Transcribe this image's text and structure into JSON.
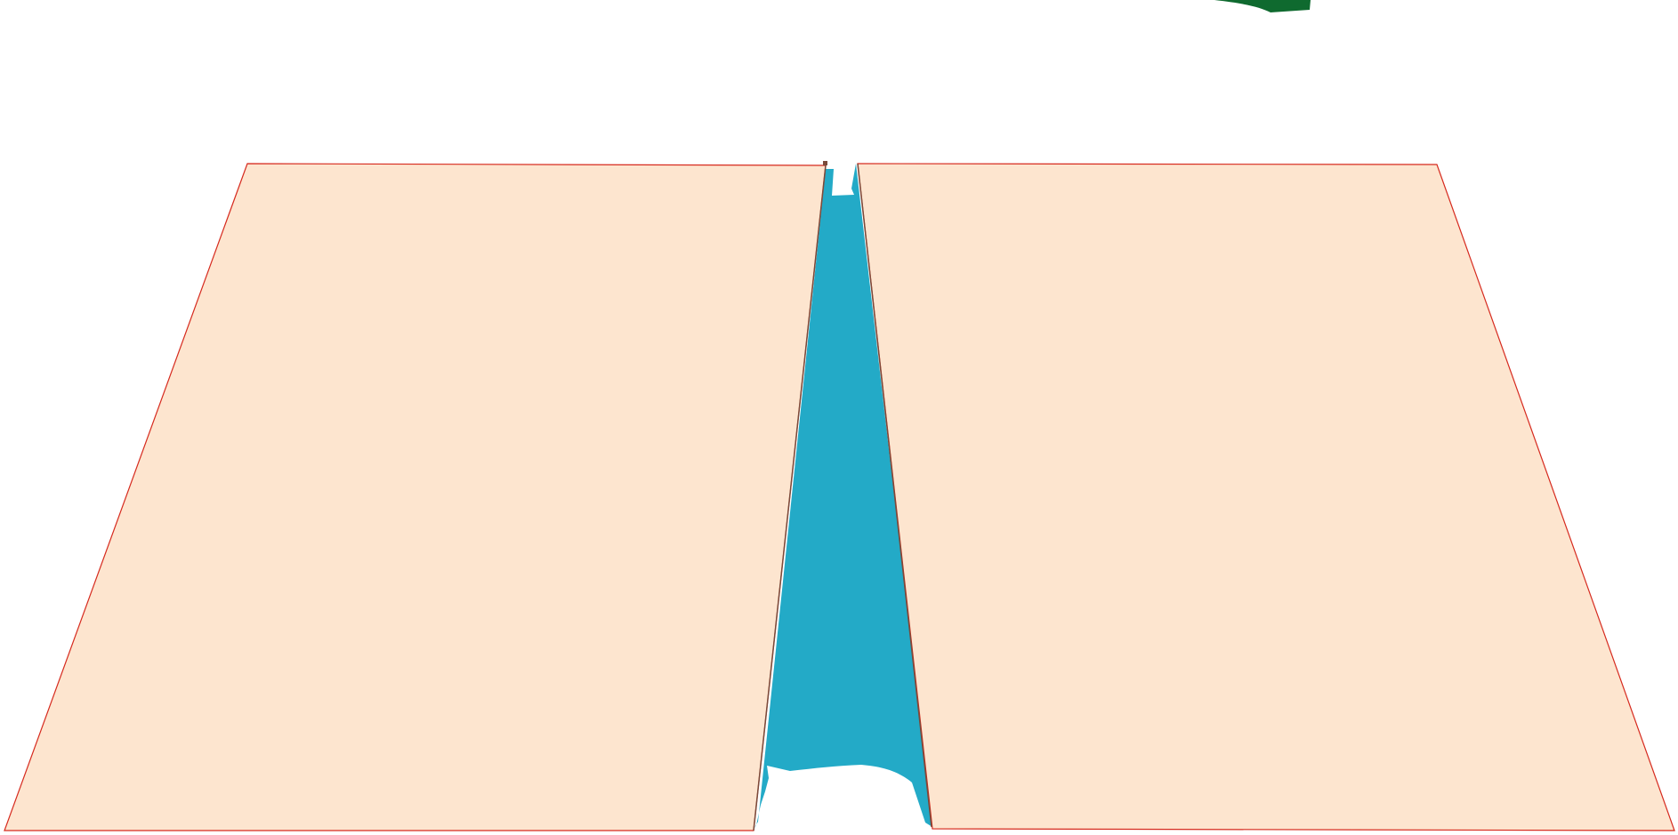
{
  "colors": {
    "background": "#ffffff",
    "panel_fill": "#fde5cf",
    "panel_edge": "#d62a1e",
    "panel_edge_dark": "#7a4a3a",
    "channel_fill": "#23aac7",
    "accent_green": "#0f6a2f"
  }
}
